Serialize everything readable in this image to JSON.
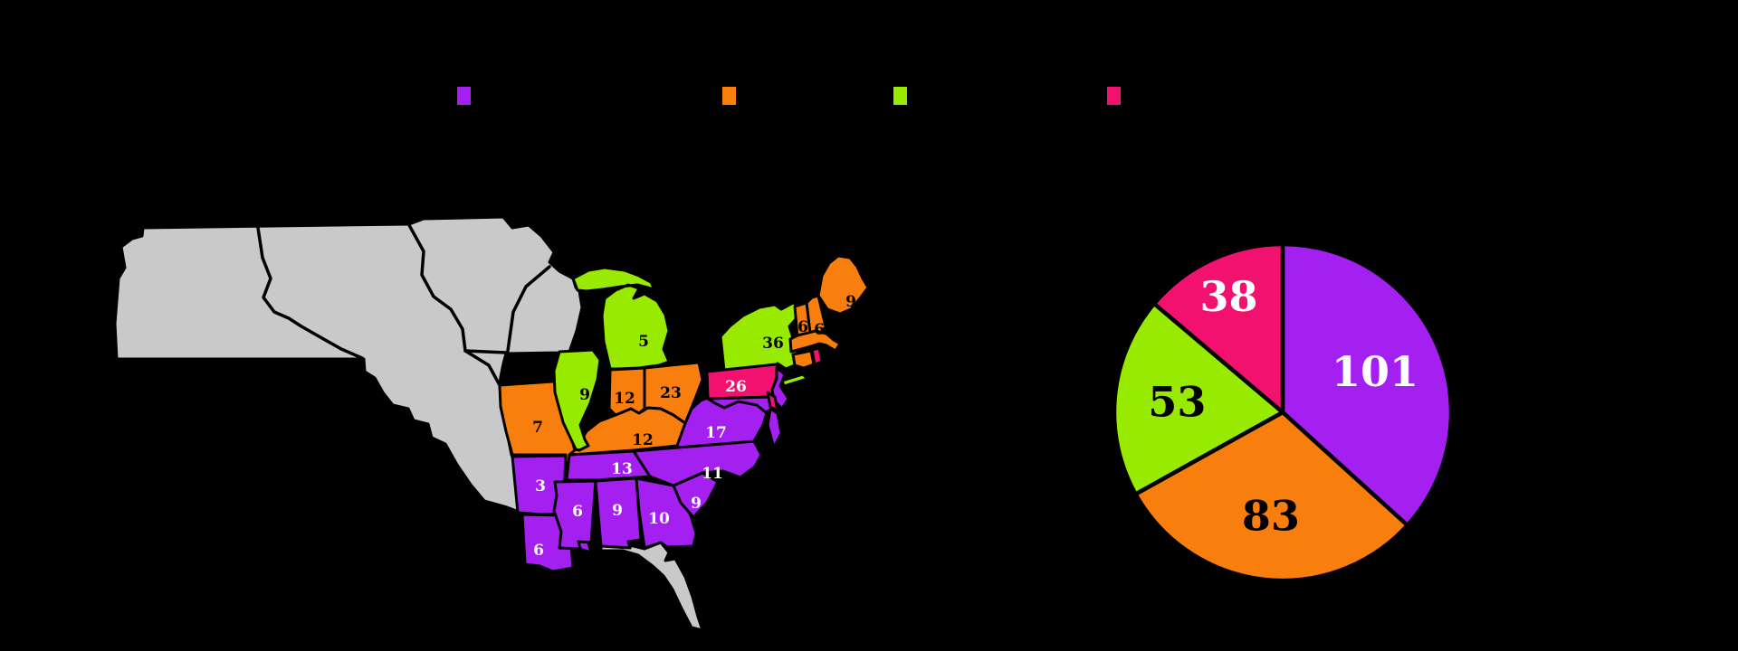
{
  "background_color": "#000000",
  "palette": {
    "purple": "#A420F0",
    "orange": "#F87E0D",
    "green": "#97EA00",
    "pink": "#F2116E",
    "no_data_gray": "#C9C9C9",
    "border": "#000000"
  },
  "legend": {
    "swatches": [
      {
        "name": "legend-swatch-purple",
        "color_key": "purple"
      },
      {
        "name": "legend-swatch-orange",
        "color_key": "orange"
      },
      {
        "name": "legend-swatch-green",
        "color_key": "green"
      },
      {
        "name": "legend-swatch-pink",
        "color_key": "pink"
      }
    ]
  },
  "chart_data": [
    {
      "type": "pie",
      "start_angle": "top",
      "direction": "clockwise",
      "total": 275,
      "slices": [
        {
          "label": "101",
          "value": 101,
          "color_key": "purple",
          "label_color": "#FFFFFF"
        },
        {
          "label": "83",
          "value": 83,
          "color_key": "orange",
          "label_color": "#000000"
        },
        {
          "label": "53",
          "value": 53,
          "color_key": "green",
          "label_color": "#000000"
        },
        {
          "label": "38",
          "value": 38,
          "color_key": "pink",
          "label_color": "#FFFFFF"
        }
      ]
    },
    {
      "type": "choropleth",
      "no_data_color_key": "no_data_gray",
      "states": [
        {
          "id": "western-territories",
          "label": "",
          "color_key": "no_data_gray"
        },
        {
          "id": "florida-territory",
          "label": "",
          "color_key": "no_data_gray"
        },
        {
          "id": "missouri",
          "label": "7",
          "value": 7,
          "color_key": "orange",
          "label_color": "#000000"
        },
        {
          "id": "arkansas",
          "label": "3",
          "value": 3,
          "color_key": "purple",
          "label_color": "#FFFFFF"
        },
        {
          "id": "louisiana",
          "label": "6",
          "value": 6,
          "color_key": "purple",
          "label_color": "#FFFFFF"
        },
        {
          "id": "mississippi",
          "label": "6",
          "value": 6,
          "color_key": "purple",
          "label_color": "#FFFFFF"
        },
        {
          "id": "alabama",
          "label": "9",
          "value": 9,
          "color_key": "purple",
          "label_color": "#FFFFFF"
        },
        {
          "id": "georgia",
          "label": "10",
          "value": 10,
          "color_key": "purple",
          "label_color": "#FFFFFF"
        },
        {
          "id": "south-carolina",
          "label": "9",
          "value": 9,
          "color_key": "purple",
          "label_color": "#FFFFFF"
        },
        {
          "id": "north-carolina",
          "label": "11",
          "value": 11,
          "color_key": "purple",
          "label_color": "#FFFFFF"
        },
        {
          "id": "tennessee",
          "label": "13",
          "value": 13,
          "color_key": "purple",
          "label_color": "#FFFFFF"
        },
        {
          "id": "virginia",
          "label": "17",
          "value": 17,
          "color_key": "purple",
          "label_color": "#FFFFFF"
        },
        {
          "id": "kentucky",
          "label": "12",
          "value": 12,
          "color_key": "orange",
          "label_color": "#000000"
        },
        {
          "id": "illinois",
          "label": "9",
          "value": 9,
          "color_key": "green",
          "label_color": "#000000"
        },
        {
          "id": "indiana",
          "label": "12",
          "value": 12,
          "color_key": "orange",
          "label_color": "#000000"
        },
        {
          "id": "ohio",
          "label": "23",
          "value": 23,
          "color_key": "orange",
          "label_color": "#000000"
        },
        {
          "id": "michigan",
          "label": "5",
          "value": 5,
          "color_key": "green",
          "label_color": "#000000"
        },
        {
          "id": "new-york",
          "label": "36",
          "value": 36,
          "color_key": "green",
          "label_color": "#000000"
        },
        {
          "id": "pennsylvania",
          "label": "26",
          "value": 26,
          "color_key": "pink",
          "label_color": "#FFFFFF"
        },
        {
          "id": "new-jersey",
          "label": "",
          "color_key": "purple"
        },
        {
          "id": "maryland",
          "label": "",
          "color_key": "purple"
        },
        {
          "id": "delaware",
          "label": "",
          "color_key": "pink"
        },
        {
          "id": "maine",
          "label": "9",
          "value": 9,
          "color_key": "orange",
          "label_color": "#000000"
        },
        {
          "id": "new-hampshire",
          "label": "6",
          "value": 6,
          "color_key": "orange",
          "label_color": "#000000"
        },
        {
          "id": "vermont",
          "label": "6",
          "value": 6,
          "color_key": "orange",
          "label_color": "#000000"
        },
        {
          "id": "massachusetts",
          "label": "",
          "color_key": "orange"
        },
        {
          "id": "connecticut",
          "label": "",
          "color_key": "orange"
        },
        {
          "id": "rhode-island",
          "label": "",
          "color_key": "pink"
        }
      ]
    }
  ]
}
